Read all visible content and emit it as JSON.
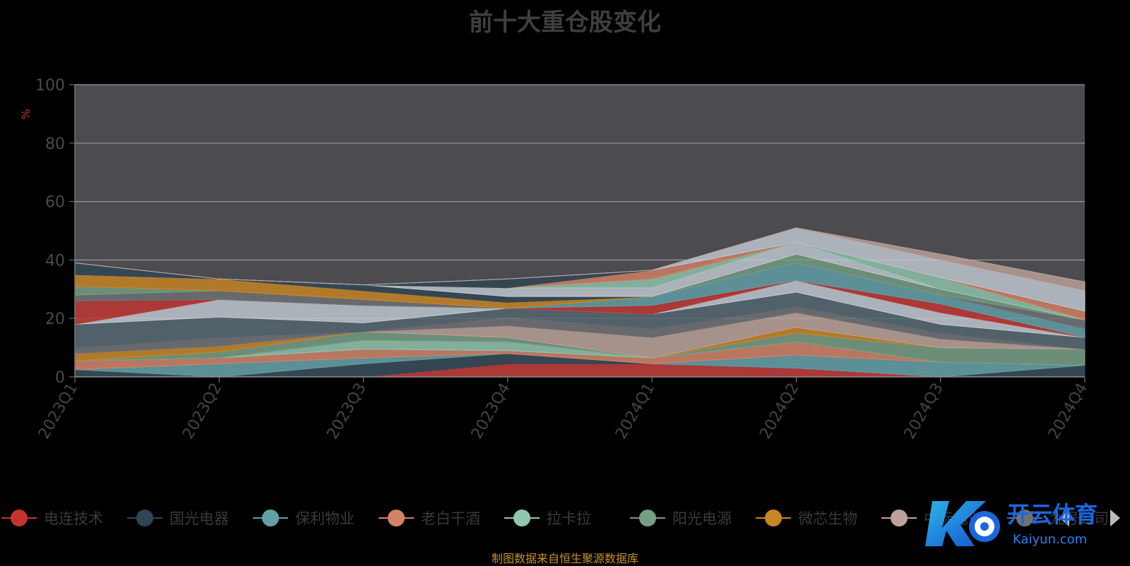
{
  "chart_data": {
    "type": "area",
    "stacked": true,
    "title": "前十大重仓股变化",
    "ylabel": "%",
    "ylim": [
      0,
      100
    ],
    "yticks": [
      0,
      20,
      40,
      60,
      80,
      100
    ],
    "grid": true,
    "legend_position": "bottom",
    "categories": [
      "2023Q1",
      "2023Q2",
      "2023Q3",
      "2023Q4",
      "2024Q1",
      "2024Q2",
      "2024Q3",
      "2024Q4"
    ],
    "series": [
      {
        "name": "电连技术",
        "color": "#c23531",
        "values": [
          0,
          0,
          0,
          4.5,
          4.5,
          3,
          0,
          0
        ]
      },
      {
        "name": "国光电器",
        "color": "#2f4554",
        "values": [
          2.5,
          0,
          4.5,
          3.5,
          0,
          0,
          0,
          4
        ]
      },
      {
        "name": "保利物业",
        "color": "#61a0a8",
        "values": [
          0,
          4.5,
          2,
          0,
          0,
          4.5,
          5,
          0
        ]
      },
      {
        "name": "老白干酒",
        "color": "#d48265",
        "values": [
          3,
          2,
          3,
          1,
          2,
          4.5,
          0,
          0
        ]
      },
      {
        "name": "拉卡拉",
        "color": "#91c7ae",
        "values": [
          0,
          0,
          3,
          3,
          0,
          0,
          0,
          0
        ]
      },
      {
        "name": "阳光电源",
        "color": "#749f83",
        "values": [
          0,
          2,
          3,
          1.5,
          0,
          3,
          5,
          5.5
        ]
      },
      {
        "name": "微芯生物",
        "color": "#ca8622",
        "values": [
          2.5,
          2,
          0,
          0,
          0,
          2,
          0,
          0
        ]
      },
      {
        "name": "中际旭创",
        "color": "#bda29a",
        "values": [
          0,
          0,
          0,
          4,
          7,
          5,
          3,
          0
        ]
      },
      {
        "name": "九号公司",
        "color": "#6e7074",
        "values": [
          2,
          3,
          0,
          3,
          3,
          2,
          2,
          0
        ]
      },
      {
        "name": "",
        "color": "#546570",
        "values": [
          8,
          7,
          3,
          3,
          5,
          5,
          3,
          4
        ]
      },
      {
        "name": "",
        "color": "#c4ccd3",
        "values": [
          0,
          6,
          6,
          0,
          0,
          4,
          4,
          0
        ]
      },
      {
        "name": "",
        "color": "#c23531",
        "values": [
          8,
          0,
          0,
          0,
          3,
          0,
          3,
          0
        ]
      },
      {
        "name": "",
        "color": "#61a0a8",
        "values": [
          0,
          0,
          0,
          0,
          3,
          6,
          3,
          3
        ]
      },
      {
        "name": "",
        "color": "#6e7074",
        "values": [
          2,
          3,
          2,
          0,
          0,
          0,
          0,
          3
        ]
      },
      {
        "name": "",
        "color": "#749f83",
        "values": [
          3,
          0,
          0,
          0,
          0,
          3,
          2,
          0
        ]
      },
      {
        "name": "",
        "color": "#ca8622",
        "values": [
          4,
          4,
          3,
          2,
          0,
          0,
          0,
          0
        ]
      },
      {
        "name": "",
        "color": "#2f4554",
        "values": [
          0,
          0,
          2,
          2,
          0,
          0,
          0,
          0
        ]
      },
      {
        "name": "",
        "color": "#c4ccd3",
        "values": [
          0,
          0,
          0,
          3,
          3,
          4,
          0,
          0
        ]
      },
      {
        "name": "",
        "color": "#91c7ae",
        "values": [
          0,
          0,
          0,
          0,
          3,
          0,
          4,
          0
        ]
      },
      {
        "name": "",
        "color": "#d48265",
        "values": [
          0,
          0,
          0,
          0,
          3,
          0,
          0,
          3
        ]
      },
      {
        "name": "",
        "color": "#2f4554",
        "values": [
          4,
          0,
          0,
          3,
          0,
          0,
          0,
          0
        ]
      },
      {
        "name": "",
        "color": "#c4ccd3",
        "values": [
          0,
          0,
          0,
          0,
          0,
          5,
          6,
          7
        ]
      },
      {
        "name": "",
        "color": "#bda29a",
        "values": [
          0,
          0,
          0,
          0,
          0,
          0,
          2,
          3
        ]
      }
    ]
  },
  "footer": {
    "source": "制图数据来自恒生聚源数据库"
  },
  "watermark": {
    "brand": "开云体育",
    "domain": "Kaiyun.com"
  },
  "icons": {
    "prev": "chevron-left-icon",
    "next": "chevron-right-icon"
  }
}
